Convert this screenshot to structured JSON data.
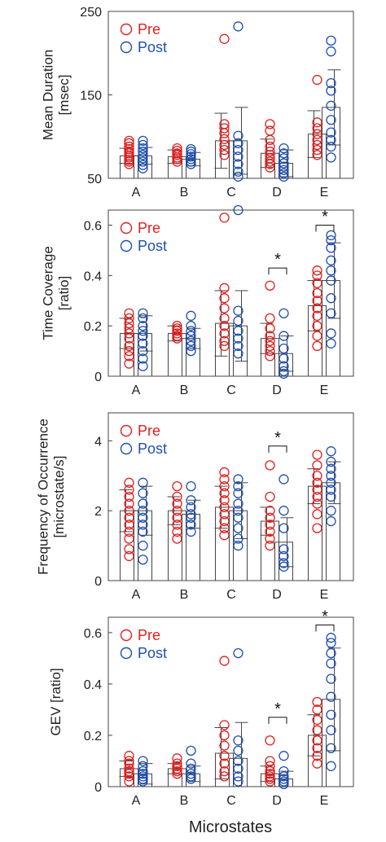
{
  "colors": {
    "pre": "#e02020",
    "post": "#1f4fae",
    "axis": "#444444"
  },
  "xlabel": "Microstates",
  "chart_data": [
    {
      "type": "bar",
      "categories": [
        "A",
        "B",
        "C",
        "D",
        "E"
      ],
      "ylabel": [
        "Mean Duration",
        "[msec]"
      ],
      "ylim": [
        50,
        250
      ],
      "yticks": [
        50,
        150,
        250
      ],
      "legend": [
        "Pre",
        "Post"
      ],
      "series": [
        {
          "name": "Pre",
          "means": [
            77,
            76,
            95,
            80,
            103
          ],
          "errors": [
            9,
            8,
            33,
            17,
            28
          ],
          "points": [
            [
              95,
              92,
              88,
              85,
              82,
              80,
              77,
              75,
              72,
              70,
              67
            ],
            [
              86,
              83,
              80,
              78,
              75,
              73,
              70
            ],
            [
              217,
              115,
              110,
              104,
              97,
              90,
              84,
              78
            ],
            [
              115,
              107,
              96,
              88,
              82,
              78,
              74,
              70,
              67,
              63
            ],
            [
              168,
              117,
              110,
              103,
              96,
              90,
              84,
              78
            ]
          ]
        },
        {
          "name": "Post",
          "means": [
            77,
            73,
            95,
            68,
            135
          ],
          "errors": [
            10,
            8,
            40,
            16,
            45
          ],
          "points": [
            [
              95,
              90,
              86,
              82,
              78,
              74,
              70,
              66,
              62
            ],
            [
              85,
              82,
              79,
              76,
              73,
              70,
              67
            ],
            [
              232,
              101,
              92,
              84,
              76,
              67,
              58,
              52
            ],
            [
              86,
              80,
              74,
              68,
              64,
              60,
              56,
              52
            ],
            [
              215,
              202,
              164,
              155,
              137,
              120,
              105,
              96,
              88,
              75
            ]
          ]
        }
      ],
      "significance": []
    },
    {
      "type": "bar",
      "categories": [
        "A",
        "B",
        "C",
        "D",
        "E"
      ],
      "ylabel": [
        "Time Coverage",
        "[ratio]"
      ],
      "ylim": [
        0,
        0.66
      ],
      "yticks": [
        0,
        0.2,
        0.4,
        0.6
      ],
      "ytick_labels": [
        "0",
        "0.2",
        "0.4",
        "0.6"
      ],
      "legend": [
        "Pre",
        "Post"
      ],
      "series": [
        {
          "name": "Pre",
          "means": [
            0.17,
            0.17,
            0.21,
            0.15,
            0.28
          ],
          "errors": [
            0.06,
            0.03,
            0.13,
            0.06,
            0.1
          ],
          "points": [
            [
              0.25,
              0.23,
              0.21,
              0.19,
              0.17,
              0.15,
              0.12,
              0.1,
              0.08,
              0.05
            ],
            [
              0.2,
              0.19,
              0.18,
              0.17,
              0.16,
              0.15
            ],
            [
              0.63,
              0.35,
              0.31,
              0.27,
              0.23,
              0.2,
              0.17,
              0.14,
              0.12
            ],
            [
              0.36,
              0.23,
              0.19,
              0.16,
              0.14,
              0.12,
              0.1,
              0.08
            ],
            [
              0.42,
              0.4,
              0.37,
              0.33,
              0.3,
              0.27,
              0.24,
              0.2,
              0.16,
              0.12
            ]
          ]
        },
        {
          "name": "Post",
          "means": [
            0.17,
            0.15,
            0.2,
            0.09,
            0.38
          ],
          "errors": [
            0.07,
            0.04,
            0.14,
            0.07,
            0.15
          ],
          "points": [
            [
              0.25,
              0.23,
              0.2,
              0.18,
              0.16,
              0.13,
              0.1,
              0.07,
              0.04
            ],
            [
              0.24,
              0.2,
              0.18,
              0.16,
              0.14,
              0.12,
              0.1
            ],
            [
              0.68,
              0.26,
              0.22,
              0.18,
              0.15,
              0.12,
              0.09
            ],
            [
              0.25,
              0.16,
              0.11,
              0.07,
              0.04,
              0.02,
              0.01
            ],
            [
              0.56,
              0.54,
              0.51,
              0.46,
              0.42,
              0.38,
              0.31,
              0.25,
              0.17,
              0.13
            ]
          ]
        }
      ],
      "significance": [
        {
          "category": "D",
          "label": "*",
          "y": 0.43
        },
        {
          "category": "E",
          "label": "*",
          "y": 0.6
        }
      ]
    },
    {
      "type": "bar",
      "categories": [
        "A",
        "B",
        "C",
        "D",
        "E"
      ],
      "ylabel": [
        "Frequency of Occurrence",
        "[microstate/s]"
      ],
      "ylim": [
        0,
        4.8
      ],
      "yticks": [
        0,
        2,
        4
      ],
      "legend": [
        "Pre",
        "Post"
      ],
      "series": [
        {
          "name": "Pre",
          "means": [
            2.0,
            2.0,
            2.1,
            1.7,
            2.7
          ],
          "errors": [
            0.6,
            0.4,
            0.6,
            0.4,
            0.5
          ],
          "points": [
            [
              2.8,
              2.6,
              2.4,
              2.2,
              2.0,
              1.8,
              1.6,
              1.4,
              1.2,
              0.9,
              0.7
            ],
            [
              2.7,
              2.4,
              2.2,
              2.0,
              1.8,
              1.6,
              1.4,
              1.2
            ],
            [
              3.1,
              2.9,
              2.7,
              2.5,
              2.3,
              2.1,
              1.9,
              1.7,
              1.5,
              1.3
            ],
            [
              3.3,
              2.4,
              2.0,
              1.8,
              1.6,
              1.4,
              1.2,
              1.0
            ],
            [
              3.6,
              3.3,
              3.0,
              2.8,
              2.6,
              2.4,
              2.2,
              1.9,
              1.5
            ]
          ]
        },
        {
          "name": "Post",
          "means": [
            2.0,
            1.9,
            2.0,
            1.1,
            2.8
          ],
          "errors": [
            0.7,
            0.4,
            0.8,
            0.7,
            0.6
          ],
          "points": [
            [
              2.8,
              2.5,
              2.2,
              2.0,
              1.8,
              1.6,
              1.4,
              1.0,
              0.6
            ],
            [
              2.7,
              2.3,
              2.1,
              1.9,
              1.8,
              1.6,
              1.4
            ],
            [
              2.9,
              2.7,
              2.5,
              2.2,
              2.0,
              1.8,
              1.5,
              1.2,
              1.0
            ],
            [
              2.9,
              2.0,
              1.5,
              0.9,
              0.7,
              0.5,
              0.4
            ],
            [
              3.7,
              3.4,
              3.2,
              3.0,
              2.8,
              2.6,
              2.4,
              2.0,
              1.7
            ]
          ]
        }
      ],
      "significance": [
        {
          "category": "D",
          "label": "*",
          "y": 3.85
        }
      ]
    },
    {
      "type": "bar",
      "categories": [
        "A",
        "B",
        "C",
        "D",
        "E"
      ],
      "ylabel": [
        "GEV [ratio]"
      ],
      "ylim": [
        0,
        0.66
      ],
      "yticks": [
        0,
        0.2,
        0.4,
        0.6
      ],
      "ytick_labels": [
        "0",
        "0.2",
        "0.4",
        "0.6"
      ],
      "legend": [
        "Pre",
        "Post"
      ],
      "series": [
        {
          "name": "Pre",
          "means": [
            0.07,
            0.07,
            0.13,
            0.05,
            0.2
          ],
          "errors": [
            0.03,
            0.02,
            0.1,
            0.03,
            0.08
          ],
          "points": [
            [
              0.12,
              0.1,
              0.09,
              0.07,
              0.06,
              0.05,
              0.04,
              0.02
            ],
            [
              0.11,
              0.09,
              0.08,
              0.07,
              0.06,
              0.05
            ],
            [
              0.49,
              0.24,
              0.2,
              0.16,
              0.12,
              0.09,
              0.06,
              0.04
            ],
            [
              0.18,
              0.1,
              0.08,
              0.06,
              0.05,
              0.04,
              0.03,
              0.02
            ],
            [
              0.33,
              0.3,
              0.26,
              0.22,
              0.18,
              0.15,
              0.12,
              0.09
            ]
          ]
        },
        {
          "name": "Post",
          "means": [
            0.05,
            0.05,
            0.11,
            0.03,
            0.34
          ],
          "errors": [
            0.04,
            0.03,
            0.14,
            0.03,
            0.2
          ],
          "points": [
            [
              0.1,
              0.08,
              0.06,
              0.05,
              0.04,
              0.03,
              0.02
            ],
            [
              0.14,
              0.09,
              0.07,
              0.05,
              0.04,
              0.03
            ],
            [
              0.52,
              0.18,
              0.14,
              0.1,
              0.07,
              0.04,
              0.02
            ],
            [
              0.12,
              0.06,
              0.04,
              0.03,
              0.02,
              0.01
            ],
            [
              0.58,
              0.56,
              0.52,
              0.48,
              0.42,
              0.35,
              0.28,
              0.22,
              0.15,
              0.08
            ]
          ]
        }
      ],
      "significance": [
        {
          "category": "D",
          "label": "*",
          "y": 0.27
        },
        {
          "category": "E",
          "label": "*",
          "y": 0.63
        }
      ]
    }
  ]
}
